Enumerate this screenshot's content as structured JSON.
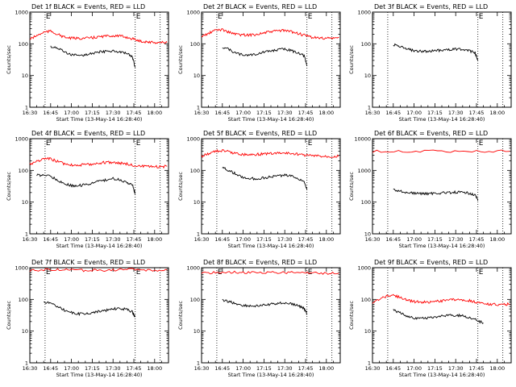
{
  "figure": {
    "background": "#ffffff",
    "colors": {
      "events": "#000000",
      "lld": "#ff0000"
    }
  },
  "chart_data": [
    {
      "type": "line",
      "title": "Det 1f BLACK = Events, RED = LLD",
      "xlabel": "Start Time (13-May-14 16:28:40)",
      "ylabel": "Counts/sec",
      "yscale": "log",
      "ylim": [
        1,
        1000
      ],
      "xlim_minutes_since_1630": [
        0,
        100
      ],
      "xticks": [
        0,
        15,
        30,
        45,
        60,
        75,
        90
      ],
      "xtick_labels": [
        "16:30",
        "16:45",
        "17:00",
        "17:15",
        "17:30",
        "17:45",
        "18:00"
      ],
      "yticks": [
        1,
        10,
        100,
        1000
      ],
      "ytick_labels": [
        "1",
        "10",
        "100",
        "1000"
      ],
      "markers": [
        {
          "x": 11,
          "label": "E"
        },
        {
          "x": 76,
          "label": "E"
        },
        {
          "x": 94,
          "label": ""
        }
      ],
      "series": [
        {
          "name": "Events",
          "color": "#000000",
          "x": [
            15,
            20,
            25,
            30,
            35,
            40,
            45,
            50,
            55,
            60,
            65,
            70,
            74,
            76
          ],
          "y": [
            80,
            75,
            55,
            45,
            42,
            45,
            50,
            55,
            58,
            60,
            55,
            48,
            38,
            18
          ]
        },
        {
          "name": "LLD",
          "color": "#ff0000",
          "x": [
            0,
            5,
            10,
            15,
            20,
            25,
            30,
            35,
            40,
            45,
            50,
            55,
            60,
            65,
            70,
            75,
            80,
            85,
            90,
            95,
            99
          ],
          "y": [
            140,
            180,
            230,
            250,
            200,
            160,
            150,
            148,
            150,
            155,
            165,
            175,
            180,
            175,
            160,
            140,
            120,
            115,
            110,
            110,
            112
          ]
        }
      ]
    },
    {
      "type": "line",
      "title": "Det 2f BLACK = Events, RED = LLD",
      "xlabel": "Start Time (13-May-14 16:28:40)",
      "ylabel": "Counts/sec",
      "yscale": "log",
      "ylim": [
        1,
        1000
      ],
      "xlim_minutes_since_1630": [
        0,
        100
      ],
      "xticks": [
        0,
        15,
        30,
        45,
        60,
        75,
        90
      ],
      "xtick_labels": [
        "16:30",
        "16:45",
        "17:00",
        "17:15",
        "17:30",
        "17:45",
        "18:00"
      ],
      "yticks": [
        1,
        10,
        100,
        1000
      ],
      "ytick_labels": [
        "1",
        "10",
        "100",
        "1000"
      ],
      "markers": [
        {
          "x": 11,
          "label": "E"
        },
        {
          "x": 76,
          "label": "E"
        },
        {
          "x": 94,
          "label": ""
        }
      ],
      "series": [
        {
          "name": "Events",
          "color": "#000000",
          "x": [
            15,
            20,
            25,
            30,
            35,
            40,
            45,
            50,
            55,
            60,
            65,
            70,
            74,
            76
          ],
          "y": [
            80,
            65,
            50,
            45,
            45,
            48,
            55,
            60,
            65,
            68,
            60,
            52,
            42,
            20
          ]
        },
        {
          "name": "LLD",
          "color": "#ff0000",
          "x": [
            0,
            5,
            10,
            15,
            20,
            25,
            30,
            35,
            40,
            45,
            50,
            55,
            60,
            65,
            70,
            75,
            80,
            85,
            90,
            95,
            99
          ],
          "y": [
            170,
            210,
            270,
            280,
            230,
            200,
            190,
            190,
            200,
            220,
            240,
            260,
            260,
            240,
            210,
            180,
            160,
            150,
            150,
            150,
            155
          ]
        }
      ]
    },
    {
      "type": "line",
      "title": "Det 3f BLACK = Events, RED = LLD",
      "xlabel": "Start Time (13-May-14 16:28:40)",
      "ylabel": "Counts/sec",
      "yscale": "log",
      "ylim": [
        1,
        1000
      ],
      "xlim_minutes_since_1630": [
        0,
        100
      ],
      "xticks": [
        0,
        15,
        30,
        45,
        60,
        75,
        90
      ],
      "xtick_labels": [
        "16:30",
        "16:45",
        "17:00",
        "17:15",
        "17:30",
        "17:45",
        "18:00"
      ],
      "yticks": [
        1,
        10,
        100,
        1000
      ],
      "ytick_labels": [
        "1",
        "10",
        "100",
        "1000"
      ],
      "markers": [
        {
          "x": 11,
          "label": ""
        },
        {
          "x": 76,
          "label": "E"
        },
        {
          "x": 94,
          "label": ""
        }
      ],
      "series": [
        {
          "name": "Events",
          "color": "#000000",
          "x": [
            15,
            20,
            25,
            30,
            35,
            40,
            45,
            50,
            55,
            60,
            65,
            70,
            74,
            76
          ],
          "y": [
            95,
            80,
            68,
            60,
            58,
            58,
            60,
            63,
            66,
            68,
            66,
            60,
            52,
            30
          ]
        }
      ]
    },
    {
      "type": "line",
      "title": "Det 4f BLACK = Events, RED = LLD",
      "xlabel": "Start Time (13-May-14 16:28:40)",
      "ylabel": "Counts/sec",
      "yscale": "log",
      "ylim": [
        1,
        1000
      ],
      "xlim_minutes_since_1630": [
        0,
        100
      ],
      "xticks": [
        0,
        15,
        30,
        45,
        60,
        75,
        90
      ],
      "xtick_labels": [
        "16:30",
        "16:45",
        "17:00",
        "17:15",
        "17:30",
        "17:45",
        "18:00"
      ],
      "yticks": [
        1,
        10,
        100,
        1000
      ],
      "ytick_labels": [
        "1",
        "10",
        "100",
        "1000"
      ],
      "markers": [
        {
          "x": 11,
          "label": "E"
        },
        {
          "x": 76,
          "label": "E"
        },
        {
          "x": 94,
          "label": ""
        }
      ],
      "series": [
        {
          "name": "Events",
          "color": "#000000",
          "x": [
            5,
            10,
            15,
            20,
            25,
            30,
            35,
            40,
            45,
            50,
            55,
            60,
            65,
            70,
            74,
            76
          ],
          "y": [
            70,
            72,
            65,
            50,
            38,
            33,
            33,
            36,
            40,
            45,
            50,
            55,
            50,
            42,
            35,
            18
          ]
        },
        {
          "name": "LLD",
          "color": "#ff0000",
          "x": [
            0,
            5,
            10,
            15,
            20,
            25,
            30,
            35,
            40,
            45,
            50,
            55,
            60,
            65,
            70,
            75,
            80,
            85,
            90,
            95,
            99
          ],
          "y": [
            160,
            190,
            230,
            230,
            190,
            160,
            150,
            148,
            150,
            160,
            170,
            180,
            180,
            170,
            160,
            145,
            135,
            130,
            130,
            130,
            135
          ]
        }
      ]
    },
    {
      "type": "line",
      "title": "Det 5f BLACK = Events, RED = LLD",
      "xlabel": "Start Time (13-May-14 16:28:40)",
      "ylabel": "Counts/sec",
      "yscale": "log",
      "ylim": [
        1,
        1000
      ],
      "xlim_minutes_since_1630": [
        0,
        100
      ],
      "xticks": [
        0,
        15,
        30,
        45,
        60,
        75,
        90
      ],
      "xtick_labels": [
        "16:30",
        "16:45",
        "17:00",
        "17:15",
        "17:30",
        "17:45",
        "18:00"
      ],
      "yticks": [
        1,
        10,
        100,
        1000
      ],
      "ytick_labels": [
        "1",
        "10",
        "100",
        "1000"
      ],
      "markers": [
        {
          "x": 11,
          "label": ""
        },
        {
          "x": 76,
          "label": "E"
        },
        {
          "x": 94,
          "label": ""
        }
      ],
      "series": [
        {
          "name": "Events",
          "color": "#000000",
          "x": [
            15,
            20,
            25,
            30,
            35,
            40,
            45,
            50,
            55,
            60,
            65,
            70,
            74,
            76
          ],
          "y": [
            120,
            100,
            75,
            60,
            55,
            55,
            58,
            62,
            68,
            70,
            65,
            55,
            45,
            25
          ]
        },
        {
          "name": "LLD",
          "color": "#ff0000",
          "x": [
            0,
            5,
            10,
            15,
            20,
            25,
            30,
            35,
            40,
            45,
            50,
            55,
            60,
            65,
            70,
            75,
            80,
            85,
            90,
            95,
            99
          ],
          "y": [
            280,
            340,
            400,
            420,
            380,
            340,
            320,
            315,
            320,
            330,
            340,
            350,
            350,
            340,
            320,
            300,
            290,
            280,
            275,
            275,
            280
          ]
        }
      ]
    },
    {
      "type": "line",
      "title": "Det 6f BLACK = Events, RED = LLD",
      "xlabel": "Start Time (13-May-14 16:28:40)",
      "ylabel": "Counts/sec",
      "yscale": "log",
      "ylim": [
        10,
        10000
      ],
      "xlim_minutes_since_1630": [
        0,
        100
      ],
      "xticks": [
        0,
        15,
        30,
        45,
        60,
        75,
        90
      ],
      "xtick_labels": [
        "16:30",
        "16:45",
        "17:00",
        "17:15",
        "17:30",
        "17:45",
        "18:00"
      ],
      "yticks": [
        10,
        100,
        1000,
        10000
      ],
      "ytick_labels": [
        "10",
        "100",
        "1000",
        "10000"
      ],
      "markers": [
        {
          "x": 11,
          "label": ""
        },
        {
          "x": 76,
          "label": "E"
        },
        {
          "x": 94,
          "label": ""
        }
      ],
      "series": [
        {
          "name": "Events",
          "color": "#000000",
          "x": [
            15,
            20,
            25,
            30,
            35,
            40,
            45,
            50,
            55,
            60,
            65,
            70,
            74,
            76
          ],
          "y": [
            250,
            220,
            200,
            190,
            185,
            185,
            190,
            195,
            200,
            205,
            200,
            190,
            170,
            110
          ]
        },
        {
          "name": "LLD",
          "color": "#ff0000",
          "x": [
            0,
            25,
            50,
            75,
            99
          ],
          "y": [
            4000,
            4000,
            4000,
            4000,
            4000
          ]
        }
      ]
    },
    {
      "type": "line",
      "title": "Det 7f BLACK = Events, RED = LLD",
      "xlabel": "Start Time (13-May-14 16:28:40)",
      "ylabel": "Counts/sec",
      "yscale": "log",
      "ylim": [
        1,
        1000
      ],
      "xlim_minutes_since_1630": [
        0,
        100
      ],
      "xticks": [
        0,
        15,
        30,
        45,
        60,
        75,
        90
      ],
      "xtick_labels": [
        "16:30",
        "16:45",
        "17:00",
        "17:15",
        "17:30",
        "17:45",
        "18:00"
      ],
      "yticks": [
        1,
        10,
        100,
        1000
      ],
      "ytick_labels": [
        "1",
        "10",
        "100",
        "1000"
      ],
      "markers": [
        {
          "x": 11,
          "label": "E"
        },
        {
          "x": 76,
          "label": "E"
        },
        {
          "x": 94,
          "label": ""
        }
      ],
      "series": [
        {
          "name": "Events",
          "color": "#000000",
          "x": [
            10,
            15,
            20,
            25,
            30,
            35,
            40,
            45,
            50,
            55,
            60,
            65,
            70,
            74,
            76
          ],
          "y": [
            80,
            75,
            60,
            45,
            38,
            35,
            35,
            38,
            42,
            45,
            50,
            52,
            48,
            40,
            28
          ]
        },
        {
          "name": "LLD",
          "color": "#ff0000",
          "x": [
            0,
            10,
            20,
            30,
            40,
            50,
            60,
            70,
            80,
            90,
            99
          ],
          "y": [
            800,
            850,
            880,
            850,
            820,
            830,
            860,
            880,
            850,
            830,
            840
          ]
        }
      ]
    },
    {
      "type": "line",
      "title": "Det 8f BLACK = Events, RED = LLD",
      "xlabel": "Start Time (13-May-14 16:28:40)",
      "ylabel": "Counts/sec",
      "yscale": "log",
      "ylim": [
        1,
        1000
      ],
      "xlim_minutes_since_1630": [
        0,
        100
      ],
      "xticks": [
        0,
        15,
        30,
        45,
        60,
        75,
        90
      ],
      "xtick_labels": [
        "16:30",
        "16:45",
        "17:00",
        "17:15",
        "17:30",
        "17:45",
        "18:00"
      ],
      "yticks": [
        1,
        10,
        100,
        1000
      ],
      "ytick_labels": [
        "1",
        "10",
        "100",
        "1000"
      ],
      "markers": [
        {
          "x": 11,
          "label": "E"
        },
        {
          "x": 76,
          "label": "E"
        },
        {
          "x": 94,
          "label": ""
        }
      ],
      "series": [
        {
          "name": "Events",
          "color": "#000000",
          "x": [
            15,
            20,
            25,
            30,
            35,
            40,
            45,
            50,
            55,
            60,
            65,
            70,
            74,
            76
          ],
          "y": [
            95,
            85,
            72,
            65,
            62,
            62,
            65,
            70,
            75,
            78,
            72,
            62,
            52,
            35
          ]
        },
        {
          "name": "LLD",
          "color": "#ff0000",
          "x": [
            0,
            10,
            20,
            30,
            40,
            50,
            60,
            70,
            80,
            90,
            99
          ],
          "y": [
            680,
            700,
            720,
            700,
            690,
            700,
            710,
            700,
            680,
            670,
            670
          ]
        }
      ]
    },
    {
      "type": "line",
      "title": "Det 9f BLACK = Events, RED = LLD",
      "xlabel": "Start Time (13-May-14 16:28:40)",
      "ylabel": "Counts/sec",
      "yscale": "log",
      "ylim": [
        1,
        1000
      ],
      "xlim_minutes_since_1630": [
        0,
        100
      ],
      "xticks": [
        0,
        15,
        30,
        45,
        60,
        75,
        90
      ],
      "xtick_labels": [
        "16:30",
        "16:45",
        "17:00",
        "17:15",
        "17:30",
        "17:45",
        "18:00"
      ],
      "yticks": [
        1,
        10,
        100,
        1000
      ],
      "ytick_labels": [
        "1",
        "10",
        "100",
        "1000"
      ],
      "markers": [
        {
          "x": 11,
          "label": ""
        },
        {
          "x": 76,
          "label": "E"
        },
        {
          "x": 94,
          "label": ""
        }
      ],
      "series": [
        {
          "name": "Events",
          "color": "#000000",
          "x": [
            15,
            20,
            25,
            30,
            35,
            40,
            45,
            50,
            55,
            60,
            65,
            70,
            75,
            80
          ],
          "y": [
            45,
            38,
            30,
            26,
            25,
            26,
            28,
            30,
            32,
            32,
            30,
            27,
            22,
            18
          ]
        },
        {
          "name": "LLD",
          "color": "#ff0000",
          "x": [
            0,
            5,
            10,
            15,
            20,
            25,
            30,
            35,
            40,
            45,
            50,
            55,
            60,
            65,
            70,
            75,
            80,
            85,
            90,
            95,
            99
          ],
          "y": [
            75,
            100,
            125,
            135,
            115,
            95,
            85,
            82,
            82,
            85,
            90,
            95,
            98,
            97,
            90,
            82,
            75,
            70,
            68,
            68,
            72
          ]
        }
      ]
    }
  ]
}
